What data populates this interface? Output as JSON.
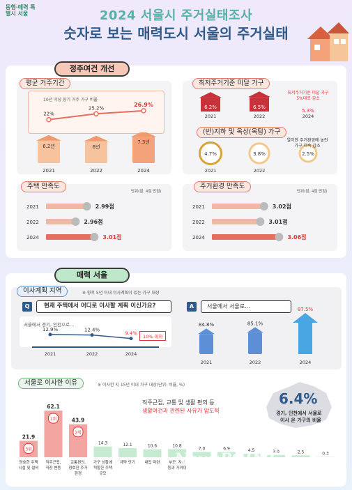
{
  "header": {
    "logo": "동행·매력 특별시 서울",
    "title": "2024 서울시 주거실태조사",
    "subtitle": "숫자로 보는 매력도시 서울의 주거실태"
  },
  "section1": {
    "tab": "정주여건 개선",
    "residence": {
      "tab": "평균 거주기간",
      "line_caption": "10년 이상 장기 거주 가구 비율",
      "unit_years": "년"
    },
    "substandard": {
      "tab": "최저주거기준 미달 가구",
      "note": "최저주거기준 미달 가구 5%대로 감소"
    },
    "basement": {
      "tab": "(반)지하 및 옥상(옥탑) 가구",
      "note": "열악한 주거환경에 놓인 가구 지속 감소"
    },
    "housing_sat": {
      "tab": "주택 만족도",
      "unit": "단위(점, 4점 만점)"
    },
    "env_sat": {
      "tab": "주거환경 만족도",
      "unit": "단위(점, 4점 만점)"
    }
  },
  "section2": {
    "tab": "매력 서울",
    "move": {
      "tab": "이사계획 지역",
      "note": "※ 향후 5년 이내 이사계획이 있는 가구 대상",
      "q_badge": "Q",
      "question": "현재 주택에서 어디로 이사할 계획 이신가요?",
      "a_badge": "A",
      "answer": "서울에서 서울로…",
      "left_caption": "서울에서 경기, 인천으로…",
      "drop_note": "10% 이하"
    },
    "reasons": {
      "tab": "서울로 이사한 이유",
      "note": "※ 이사한 지 15년 이내 가구 대상(단위: 비율, %)",
      "headline1": "직주근접, 교통 및 생활 편의 등",
      "headline2": "생활여건과 관련된 사유가 압도적",
      "big_pct": "6.4%",
      "big_caption1": "경기, 인천에서 서울로",
      "big_caption2": "이사 온 가구의 비율"
    }
  },
  "watermark": "NewsPOINT",
  "chart_data": [
    {
      "type": "line",
      "title": "평균 거주기간 - 10년 이상 장기 거주 가구 비율",
      "categories": [
        "2021",
        "2022",
        "2024"
      ],
      "values": [
        22,
        25.2,
        26.9
      ],
      "labels": [
        "22%",
        "25.2%",
        "26.9%"
      ]
    },
    {
      "type": "bar",
      "title": "평균 거주기간",
      "categories": [
        "2021",
        "2022",
        "2024"
      ],
      "values": [
        6.2,
        6,
        7.3
      ],
      "labels": [
        "6.2년",
        "6년",
        "7.3년"
      ]
    },
    {
      "type": "bar",
      "title": "최저주거기준 미달 가구",
      "categories": [
        "2021",
        "2022",
        "2024"
      ],
      "values": [
        6.2,
        6.5,
        5.3
      ],
      "labels": [
        "6.2%",
        "6.5%",
        "5.3%"
      ]
    },
    {
      "type": "bar",
      "title": "(반)지하 및 옥상(옥탑) 가구",
      "categories": [
        "2021",
        "2022",
        "2024"
      ],
      "values": [
        4.7,
        3.8,
        2.5
      ],
      "labels": [
        "4.7%",
        "3.8%",
        "2.5%"
      ]
    },
    {
      "type": "bar",
      "title": "주택 만족도",
      "categories": [
        "2021",
        "2022",
        "2024"
      ],
      "values": [
        2.99,
        2.96,
        3.01
      ],
      "labels": [
        "2.99점",
        "2.96점",
        "3.01점"
      ]
    },
    {
      "type": "bar",
      "title": "주거환경 만족도",
      "categories": [
        "2021",
        "2022",
        "2024"
      ],
      "values": [
        3.02,
        3.01,
        3.06
      ],
      "labels": [
        "3.02점",
        "3.01점",
        "3.06점"
      ]
    },
    {
      "type": "line",
      "title": "서울에서 경기, 인천으로…",
      "categories": [
        "2021",
        "2022",
        "2024"
      ],
      "values": [
        12.9,
        12.4,
        9.4
      ],
      "labels": [
        "12.9%",
        "12.4%",
        "9.4%"
      ]
    },
    {
      "type": "bar",
      "title": "서울에서 서울로…",
      "categories": [
        "2021",
        "2022",
        "2024"
      ],
      "values": [
        84.8,
        85.1,
        87.5
      ],
      "labels": [
        "84.8%",
        "85.1%",
        "87.5%"
      ]
    },
    {
      "type": "bar",
      "title": "서울로 이사한 이유",
      "categories": [
        "양호한 주택 시설 및 설비",
        "직주근접, 직장 변동",
        "교통편의, 양호한 주거 환경",
        "가구 상황에 적합한 주택 규모",
        "계약 만기",
        "내집 마련",
        "부모, 자녀 등과 가까이",
        "",
        "",
        "",
        "",
        "",
        ""
      ],
      "values": [
        21.9,
        62.1,
        43.9,
        14.3,
        12.1,
        10.6,
        10.8,
        7.0,
        6.9,
        4.5,
        3.0,
        2.5,
        0.3
      ],
      "ranks": [
        "3위",
        "1위",
        "2위",
        "",
        "",
        "",
        "",
        "",
        "",
        "",
        "",
        "",
        ""
      ]
    }
  ]
}
